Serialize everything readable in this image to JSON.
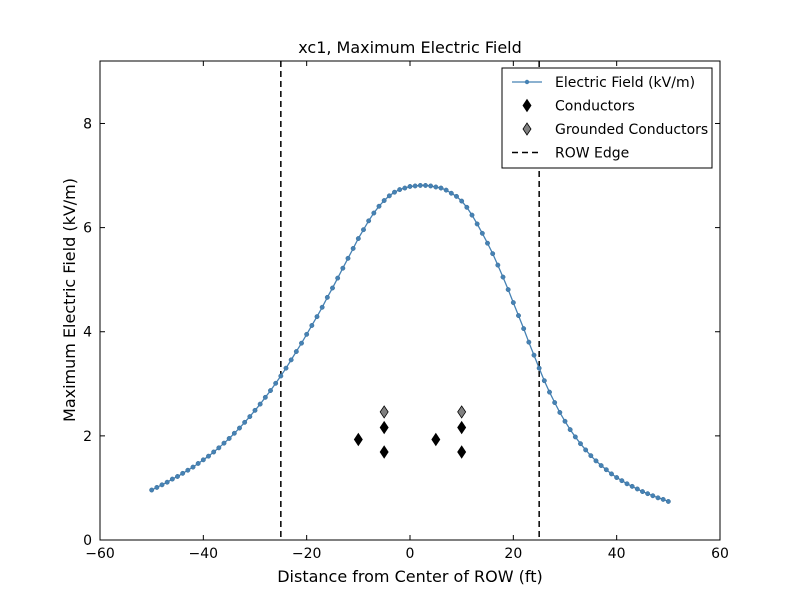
{
  "chart_data": {
    "type": "line",
    "title": "xc1, Maximum Electric Field",
    "xlabel": "Distance from Center of ROW (ft)",
    "ylabel": "Maximum Electric Field (kV/m)",
    "xlim": [
      -60,
      60
    ],
    "ylim": [
      0,
      9.2
    ],
    "xticks": [
      -60,
      -40,
      -20,
      0,
      20,
      40,
      60
    ],
    "xtick_labels": [
      "−60",
      "−40",
      "−20",
      "0",
      "20",
      "40",
      "60"
    ],
    "yticks": [
      0,
      2,
      4,
      6,
      8
    ],
    "ytick_labels": [
      "0",
      "2",
      "4",
      "6",
      "8"
    ],
    "grid": false,
    "legend_position": "top-right",
    "series": [
      {
        "name": "Electric Field (kV/m)",
        "color": "#4682b4",
        "x": [
          -50,
          -49,
          -48,
          -47,
          -46,
          -45,
          -44,
          -43,
          -42,
          -41,
          -40,
          -39,
          -38,
          -37,
          -36,
          -35,
          -34,
          -33,
          -32,
          -31,
          -30,
          -29,
          -28,
          -27,
          -26,
          -25,
          -24,
          -23,
          -22,
          -21,
          -20,
          -19,
          -18,
          -17,
          -16,
          -15,
          -14,
          -13,
          -12,
          -11,
          -10,
          -9,
          -8,
          -7,
          -6,
          -5,
          -4,
          -3,
          -2,
          -1,
          0,
          1,
          2,
          3,
          4,
          5,
          6,
          7,
          8,
          9,
          10,
          11,
          12,
          13,
          14,
          15,
          16,
          17,
          18,
          19,
          20,
          21,
          22,
          23,
          24,
          25,
          26,
          27,
          28,
          29,
          30,
          31,
          32,
          33,
          34,
          35,
          36,
          37,
          38,
          39,
          40,
          41,
          42,
          43,
          44,
          45,
          46,
          47,
          48,
          49,
          50
        ],
        "y": [
          0.96,
          1.01,
          1.06,
          1.11,
          1.17,
          1.22,
          1.28,
          1.34,
          1.4,
          1.47,
          1.54,
          1.61,
          1.69,
          1.77,
          1.86,
          1.95,
          2.05,
          2.15,
          2.26,
          2.37,
          2.49,
          2.61,
          2.74,
          2.87,
          3.01,
          3.15,
          3.3,
          3.46,
          3.62,
          3.78,
          3.95,
          4.12,
          4.29,
          4.47,
          4.66,
          4.84,
          5.03,
          5.22,
          5.41,
          5.6,
          5.79,
          5.96,
          6.13,
          6.28,
          6.41,
          6.52,
          6.61,
          6.68,
          6.73,
          6.76,
          6.79,
          6.8,
          6.81,
          6.81,
          6.8,
          6.78,
          6.76,
          6.72,
          6.66,
          6.6,
          6.51,
          6.39,
          6.24,
          6.07,
          5.89,
          5.7,
          5.5,
          5.28,
          5.05,
          4.81,
          4.56,
          4.31,
          4.06,
          3.8,
          3.55,
          3.3,
          3.06,
          2.84,
          2.64,
          2.45,
          2.28,
          2.12,
          1.98,
          1.85,
          1.73,
          1.62,
          1.52,
          1.43,
          1.35,
          1.27,
          1.2,
          1.14,
          1.08,
          1.03,
          0.98,
          0.93,
          0.89,
          0.85,
          0.81,
          0.78,
          0.74
        ]
      },
      {
        "name": "Conductors",
        "color": "#000000",
        "x": [
          -10,
          -5,
          -5,
          5,
          10,
          10
        ],
        "y": [
          1.93,
          2.16,
          1.69,
          1.93,
          2.16,
          1.69
        ]
      },
      {
        "name": "Grounded Conductors",
        "color": "#808080",
        "x": [
          -5,
          10
        ],
        "y": [
          2.46,
          2.46
        ]
      },
      {
        "name": "ROW Edge",
        "color": "#000000",
        "x": [
          -25,
          25
        ]
      }
    ]
  }
}
